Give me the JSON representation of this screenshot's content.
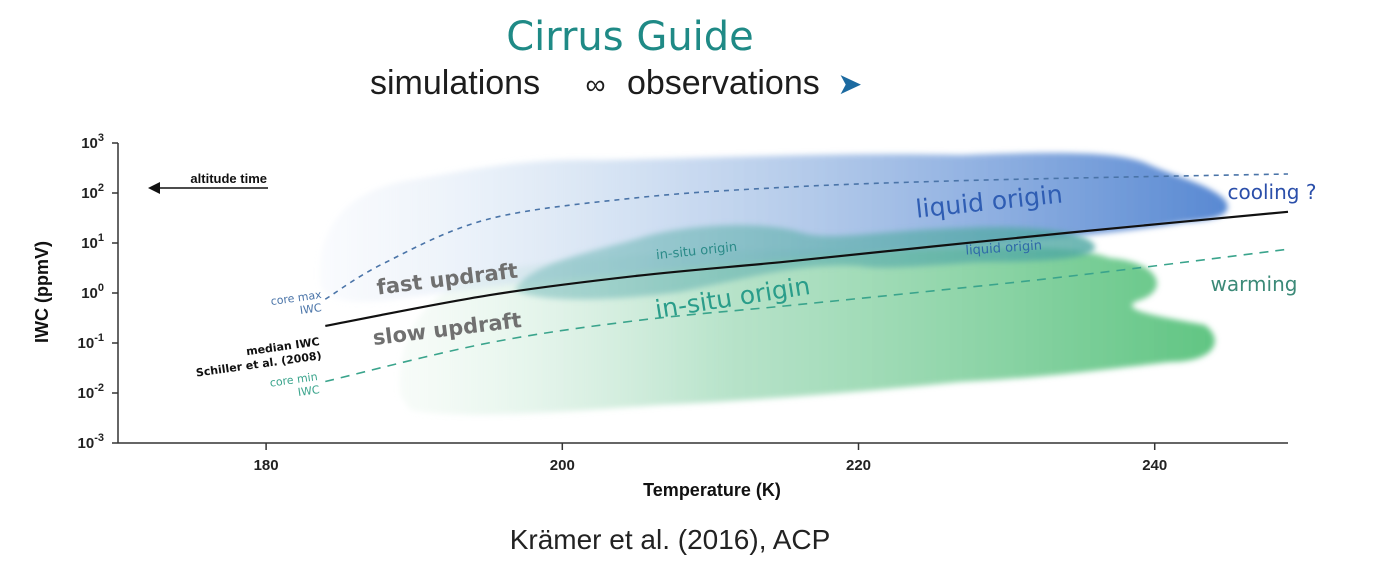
{
  "header": {
    "title": "Cirrus Guide",
    "subtitle_left": "simulations",
    "subtitle_link_icon": "∞",
    "subtitle_right": "observations",
    "arrow_icon": "➤"
  },
  "citation": "Krämer et al. (2016), ACP",
  "colors": {
    "title": "#1f8a86",
    "liquid_origin": "#3a6fc4",
    "in_situ_origin": "#35a88a",
    "warming": "#3c8a78",
    "median_line": "#111111",
    "core_max": "#4a74a8",
    "core_min": "#3aa48c"
  },
  "chart_data": {
    "type": "line",
    "xlabel": "Temperature (K)",
    "ylabel": "IWC (ppmV)",
    "xlim": [
      170,
      249
    ],
    "ylim_log10": [
      -3,
      3
    ],
    "yscale": "log",
    "x_ticks": [
      {
        "value": 180,
        "label": "180"
      },
      {
        "value": 200,
        "label": "200"
      },
      {
        "value": 220,
        "label": "220"
      },
      {
        "value": 240,
        "label": "240"
      }
    ],
    "y_ticks": [
      {
        "exp": 3,
        "base": "10",
        "sup": "3"
      },
      {
        "exp": 2,
        "base": "10",
        "sup": "2"
      },
      {
        "exp": 1,
        "base": "10",
        "sup": "1"
      },
      {
        "exp": 0,
        "base": "10",
        "sup": "0"
      },
      {
        "exp": -1,
        "base": "10",
        "sup": "-1"
      },
      {
        "exp": -2,
        "base": "10",
        "sup": "-2"
      },
      {
        "exp": -3,
        "base": "10",
        "sup": "-3"
      }
    ],
    "series": [
      {
        "name": "median IWC Schiller et al. (2008)",
        "style": "solid",
        "points": [
          [
            184,
            0.22
          ],
          [
            195,
            0.9
          ],
          [
            205,
            2.2
          ],
          [
            215,
            4.2
          ],
          [
            225,
            8.5
          ],
          [
            235,
            17
          ],
          [
            249,
            42
          ]
        ]
      },
      {
        "name": "core max IWC",
        "style": "dashed",
        "points": [
          [
            184,
            0.75
          ],
          [
            188,
            4
          ],
          [
            195,
            30
          ],
          [
            205,
            80
          ],
          [
            215,
            130
          ],
          [
            225,
            170
          ],
          [
            235,
            200
          ],
          [
            249,
            240
          ]
        ]
      },
      {
        "name": "core min IWC",
        "style": "dashed",
        "points": [
          [
            184,
            0.017
          ],
          [
            195,
            0.1
          ],
          [
            205,
            0.28
          ],
          [
            215,
            0.55
          ],
          [
            225,
            1.1
          ],
          [
            235,
            2.3
          ],
          [
            249,
            7.5
          ]
        ]
      }
    ],
    "annotations": {
      "altitude_time": "altitude time",
      "core_max_line1": "core max",
      "core_max_line2": "IWC",
      "median_line1": "median IWC",
      "median_line2": "Schiller et al. (2008)",
      "core_min_line1": "core min",
      "core_min_line2": "IWC",
      "fast_updraft": "fast updraft",
      "slow_updraft": "slow updraft",
      "liquid_origin_big": "liquid origin",
      "liquid_origin_small": "liquid origin",
      "in_situ_origin_big": "in-situ origin",
      "in_situ_origin_small": "in-situ origin",
      "cooling": "cooling ?",
      "warming": "warming"
    }
  }
}
